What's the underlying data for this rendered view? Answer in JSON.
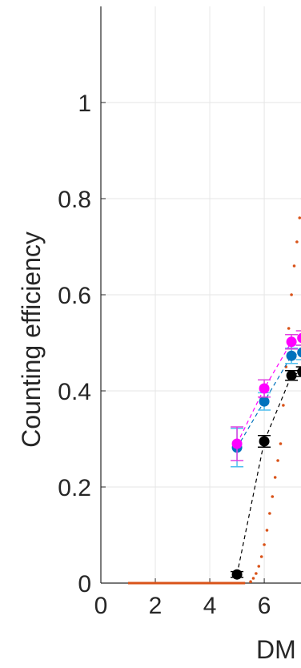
{
  "chart_data": {
    "type": "scatter",
    "title": "",
    "xlabel": "DM",
    "ylabel": "Counting efficiency",
    "xlim": [
      0,
      7.35
    ],
    "ylim": [
      0,
      1.2
    ],
    "grid": true,
    "x_ticks": [
      0,
      2,
      4,
      6
    ],
    "x_tick_labels": [
      "0",
      "2",
      "4",
      "6"
    ],
    "y_ticks": [
      0,
      0.2,
      0.4,
      0.6,
      0.8,
      1
    ],
    "y_tick_labels": [
      "0",
      "0.2",
      "0.4",
      "0.6",
      "0.8",
      "1"
    ],
    "colors": {
      "black": "#000000",
      "blue": "#0072bd",
      "magenta": "#ff00ff",
      "orange": "#d95319",
      "errorbar_cyan": "#4dbeee",
      "errorbar_magenta": "#e040e0",
      "grid": "#e6e6e6",
      "axis": "#262626"
    },
    "series": [
      {
        "style": "markers-dashed-line",
        "color": "#000000",
        "x": [
          5,
          6,
          7,
          7.4
        ],
        "y": [
          0.018,
          0.295,
          0.432,
          0.44
        ],
        "err": [
          0.006,
          0.012,
          0.01,
          0.01
        ]
      },
      {
        "style": "markers-dashed-line",
        "color": "#0072bd",
        "x": [
          5,
          6,
          7,
          7.4
        ],
        "y": [
          0.282,
          0.378,
          0.473,
          0.48
        ],
        "err": [
          0.04,
          0.018,
          0.016,
          0.015
        ]
      },
      {
        "style": "markers-dashed-line",
        "color": "#ff00ff",
        "x": [
          5,
          6,
          7,
          7.4
        ],
        "y": [
          0.29,
          0.405,
          0.502,
          0.51
        ],
        "err": [
          0.035,
          0.018,
          0.015,
          0.015
        ]
      },
      {
        "style": "dotted-fit",
        "color": "#d95319",
        "x": [
          1.0,
          1.5,
          2.0,
          2.5,
          3.0,
          3.5,
          4.0,
          4.5,
          5.0,
          5.3,
          5.5,
          5.6,
          5.7,
          5.8,
          5.9,
          6.0,
          6.1,
          6.2,
          6.3,
          6.4,
          6.5,
          6.6,
          6.7,
          6.8,
          6.9,
          7.0,
          7.1,
          7.2,
          7.3,
          7.4
        ],
        "y": [
          0,
          0,
          0,
          0,
          0,
          0,
          0,
          0,
          0,
          0,
          0.003,
          0.01,
          0.02,
          0.035,
          0.055,
          0.08,
          0.11,
          0.145,
          0.18,
          0.22,
          0.255,
          0.29,
          0.37,
          0.45,
          0.53,
          0.6,
          0.66,
          0.71,
          0.76,
          0.8
        ]
      }
    ]
  }
}
